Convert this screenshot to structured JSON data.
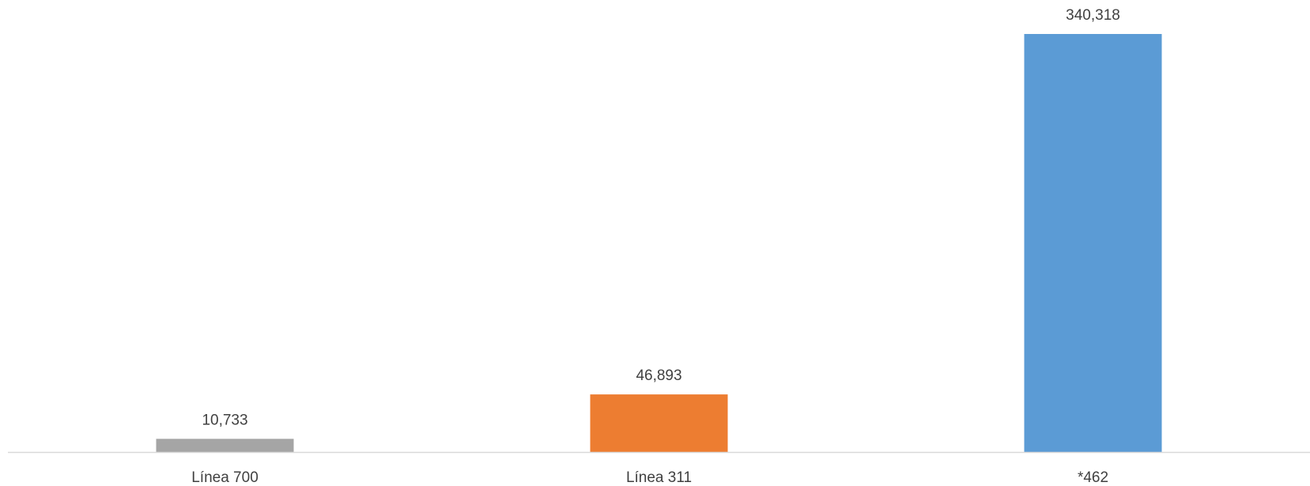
{
  "chart_data": {
    "type": "bar",
    "categories": [
      "Línea 700",
      "Línea 311",
      "*462"
    ],
    "values": [
      10733,
      46893,
      340318
    ],
    "value_labels": [
      "10,733",
      "46,893",
      "340,318"
    ],
    "colors": [
      "#A5A5A5",
      "#ED7D31",
      "#5B9BD5"
    ],
    "title": "",
    "xlabel": "",
    "ylabel": "",
    "ylim": [
      0,
      340318
    ],
    "grid": false,
    "legend": "none"
  }
}
